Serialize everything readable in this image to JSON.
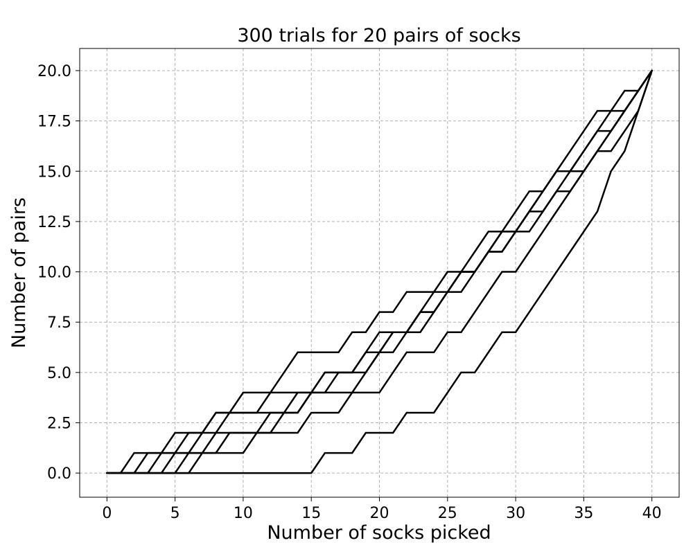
{
  "chart_data": {
    "type": "line",
    "title": "300 trials for 20 pairs of socks",
    "xlabel": "Number of socks picked",
    "ylabel": "Number of pairs",
    "xlim": [
      -2,
      42
    ],
    "ylim": [
      -1.2,
      21.1
    ],
    "xticks": [
      0,
      5,
      10,
      15,
      20,
      25,
      30,
      35,
      40
    ],
    "yticks": [
      0,
      2.5,
      5,
      7.5,
      10,
      12.5,
      15,
      17.5,
      20
    ],
    "xtick_labels": [
      "0",
      "5",
      "10",
      "15",
      "20",
      "25",
      "30",
      "35",
      "40"
    ],
    "ytick_labels": [
      "0.0",
      "2.5",
      "5.0",
      "7.5",
      "10.0",
      "12.5",
      "15.0",
      "17.5",
      "20.0"
    ],
    "grid": true,
    "line_color": "#000000",
    "trials_count": 300,
    "pairs": 20,
    "series": [
      {
        "values": [
          0,
          0,
          0,
          0,
          0,
          0,
          0,
          0,
          0,
          0,
          0,
          0,
          0,
          0,
          0,
          0,
          1,
          1,
          1,
          2,
          2,
          2,
          3,
          3,
          3,
          4,
          5,
          5,
          6,
          7,
          7,
          8,
          9,
          10,
          11,
          12,
          13,
          15,
          16,
          18,
          20
        ]
      },
      {
        "values": [
          0,
          0,
          1,
          1,
          1,
          1,
          2,
          2,
          3,
          3,
          3,
          3,
          4,
          4,
          4,
          4,
          5,
          5,
          5,
          6,
          7,
          7,
          7,
          8,
          8,
          9,
          10,
          10,
          11,
          12,
          12,
          13,
          14,
          15,
          16,
          17,
          18,
          18,
          19,
          19,
          20
        ]
      },
      {
        "values": [
          0,
          0,
          0,
          1,
          1,
          2,
          2,
          2,
          3,
          3,
          4,
          4,
          4,
          5,
          6,
          6,
          6,
          6,
          7,
          7,
          8,
          8,
          9,
          9,
          9,
          10,
          10,
          11,
          12,
          12,
          13,
          14,
          14,
          15,
          15,
          16,
          17,
          17,
          18,
          19,
          20
        ]
      },
      {
        "values": [
          0,
          0,
          0,
          0,
          0,
          1,
          1,
          1,
          2,
          2,
          2,
          2,
          3,
          3,
          4,
          4,
          5,
          5,
          5,
          6,
          6,
          7,
          7,
          8,
          9,
          9,
          10,
          10,
          11,
          12,
          12,
          13,
          13,
          14,
          15,
          15,
          16,
          17,
          18,
          19,
          20
        ]
      },
      {
        "values": [
          0,
          0,
          0,
          0,
          1,
          1,
          1,
          2,
          2,
          3,
          3,
          3,
          3,
          3,
          3,
          4,
          4,
          4,
          4,
          5,
          6,
          7,
          7,
          7,
          8,
          9,
          10,
          10,
          11,
          11,
          12,
          13,
          14,
          15,
          15,
          16,
          17,
          18,
          18,
          19,
          20
        ]
      },
      {
        "values": [
          0,
          0,
          0,
          0,
          0,
          0,
          0,
          1,
          1,
          1,
          1,
          2,
          2,
          2,
          2,
          3,
          3,
          3,
          4,
          4,
          4,
          5,
          6,
          6,
          6,
          7,
          7,
          8,
          9,
          10,
          10,
          11,
          12,
          13,
          14,
          15,
          16,
          16,
          17,
          18,
          20
        ]
      },
      {
        "values": [
          0,
          0,
          0,
          0,
          0,
          0,
          1,
          1,
          1,
          2,
          2,
          2,
          2,
          3,
          3,
          4,
          4,
          5,
          5,
          5,
          6,
          6,
          7,
          8,
          8,
          9,
          9,
          10,
          11,
          11,
          12,
          12,
          13,
          14,
          14,
          15,
          16,
          17,
          18,
          19,
          20
        ]
      }
    ]
  }
}
